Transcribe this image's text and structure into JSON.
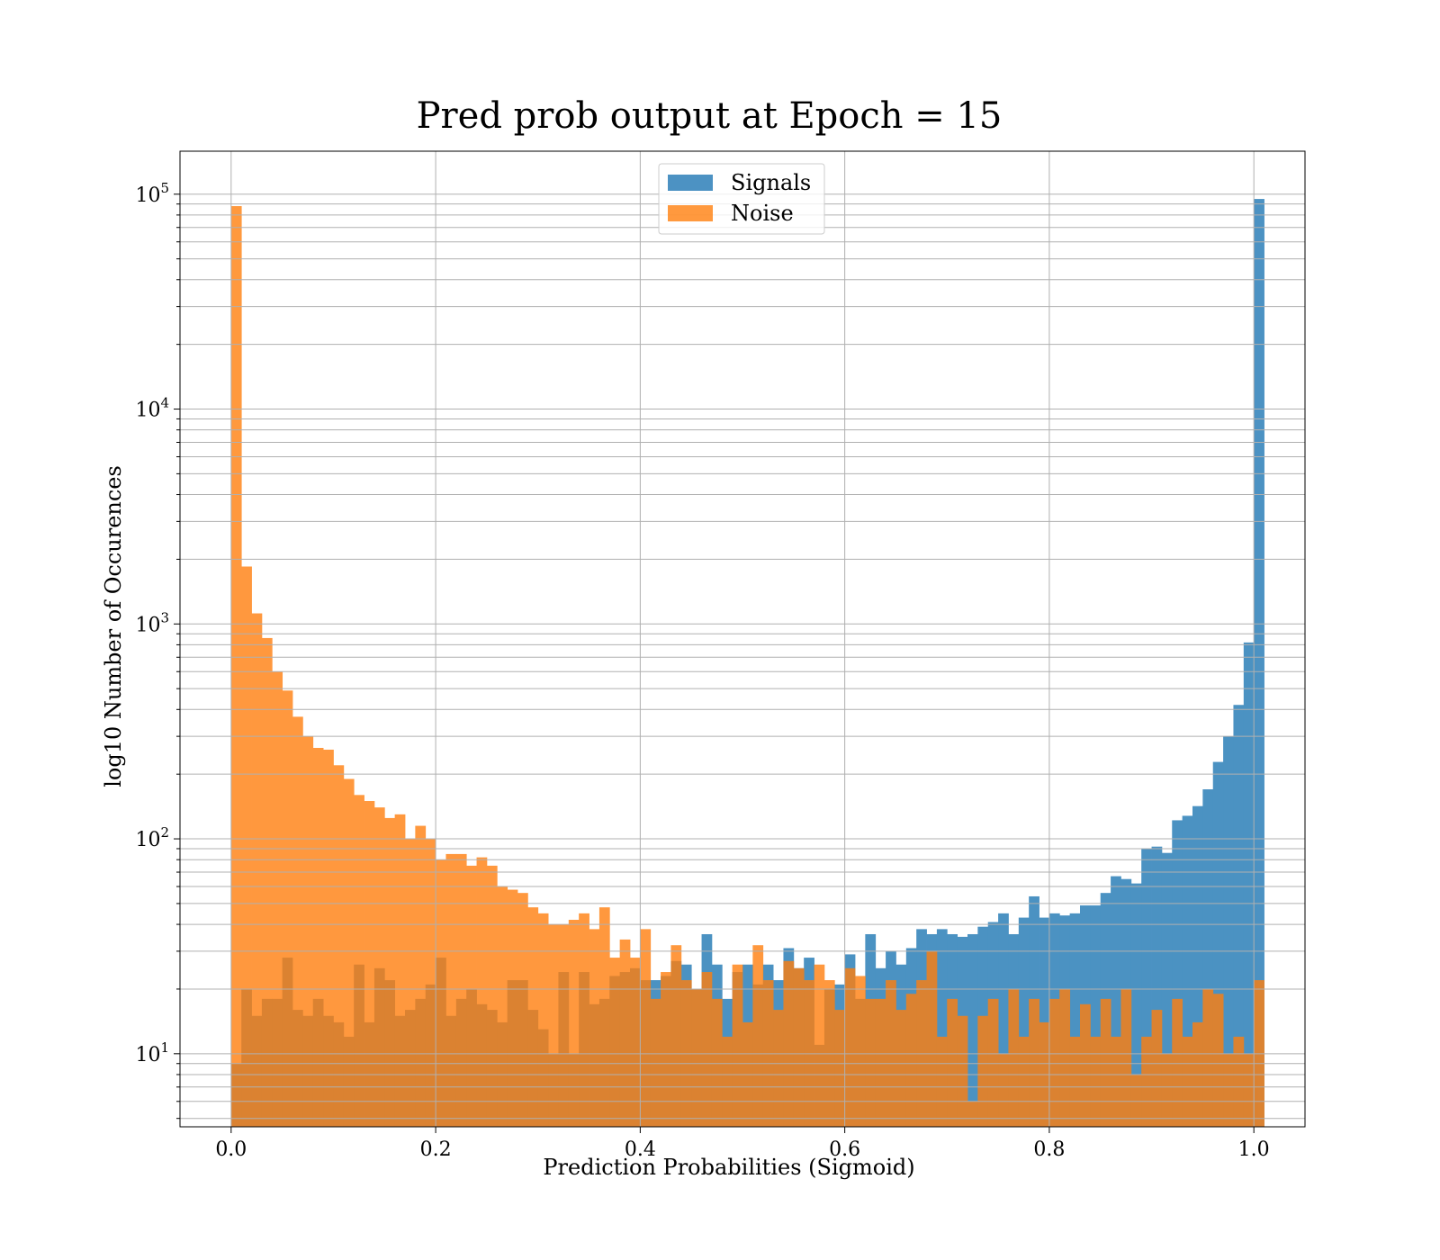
{
  "chart_data": {
    "type": "bar",
    "title": "Pred prob output at Epoch = 15",
    "xlabel": "Prediction Probabilities (Sigmoid)",
    "ylabel": "log10 Number of Occurences",
    "xlim": [
      -0.05,
      1.05
    ],
    "ylim_log10": [
      0.66,
      5.2
    ],
    "yscale": "log",
    "grid": true,
    "legend_position": "top-center",
    "x_ticks": [
      "0.0",
      "0.2",
      "0.4",
      "0.6",
      "0.8",
      "1.0"
    ],
    "x_tick_values": [
      0,
      0.2,
      0.4,
      0.6,
      0.8,
      1.0
    ],
    "y_ticks": [
      {
        "base": "10",
        "exp": "1",
        "value": 10
      },
      {
        "base": "10",
        "exp": "2",
        "value": 100
      },
      {
        "base": "10",
        "exp": "3",
        "value": 1000
      },
      {
        "base": "10",
        "exp": "4",
        "value": 10000
      },
      {
        "base": "10",
        "exp": "5",
        "value": 100000
      }
    ],
    "bin_width": 0.01,
    "bin_start": 0.0,
    "series": [
      {
        "name": "Signals",
        "color": "#1f77b4",
        "values": [
          9,
          20,
          15,
          18,
          18,
          28,
          16,
          15,
          18,
          15,
          14,
          12,
          26,
          14,
          25,
          22,
          15,
          16,
          18,
          21,
          28,
          15,
          18,
          20,
          17,
          16,
          14,
          22,
          22,
          16,
          13,
          10,
          24,
          10,
          24,
          17,
          18,
          23,
          24,
          25,
          22,
          22,
          23,
          27,
          26,
          20,
          36,
          26,
          18,
          24,
          26,
          21,
          26,
          22,
          31,
          25,
          28,
          11,
          20,
          21,
          29,
          18,
          36,
          25,
          30,
          26,
          31,
          38,
          36,
          38,
          36,
          35,
          36,
          39,
          41,
          45,
          36,
          43,
          54,
          43,
          45,
          44,
          45,
          49,
          49,
          56,
          67,
          65,
          62,
          90,
          92,
          86,
          122,
          128,
          142,
          170,
          228,
          300,
          420,
          820,
          95000
        ]
      },
      {
        "name": "Noise",
        "color": "#ff7f0e",
        "values": [
          88000,
          1850,
          1120,
          860,
          600,
          490,
          370,
          300,
          265,
          260,
          220,
          190,
          160,
          150,
          140,
          125,
          130,
          100,
          115,
          100,
          80,
          85,
          85,
          75,
          82,
          75,
          60,
          58,
          56,
          48,
          45,
          40,
          40,
          42,
          45,
          38,
          48,
          28,
          34,
          28,
          38,
          18,
          24,
          32,
          22,
          20,
          24,
          18,
          12,
          26,
          14,
          32,
          22,
          16,
          27,
          25,
          22,
          26,
          22,
          16,
          25,
          23,
          18,
          18,
          22,
          16,
          19,
          22,
          30,
          12,
          18,
          15,
          6,
          15,
          18,
          10,
          20,
          12,
          18,
          14,
          18,
          20,
          12,
          17,
          12,
          18,
          12,
          20,
          8,
          12,
          16,
          10,
          18,
          12,
          14,
          20,
          19,
          10,
          12,
          10,
          22
        ]
      }
    ]
  }
}
